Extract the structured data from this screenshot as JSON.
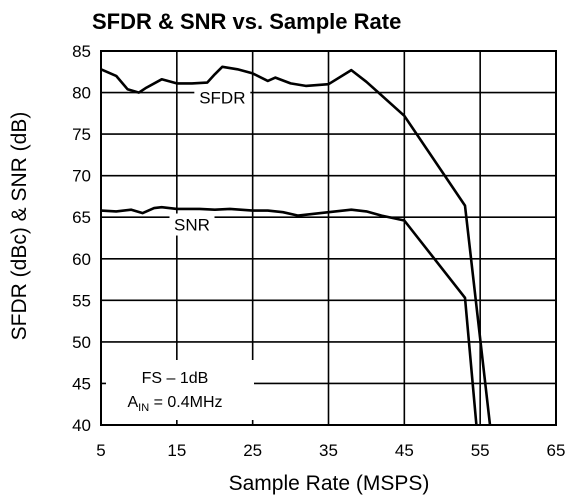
{
  "chart_data": {
    "type": "line",
    "title": "SFDR & SNR vs. Sample Rate",
    "xlabel": "Sample Rate (MSPS)",
    "ylabel": "SFDR (dBc) & SNR (dB)",
    "xlim": [
      5,
      65
    ],
    "ylim": [
      40,
      85
    ],
    "xticks": [
      5,
      15,
      25,
      35,
      45,
      55,
      65
    ],
    "yticks": [
      40,
      45,
      50,
      55,
      60,
      65,
      70,
      75,
      80,
      85
    ],
    "grid": true,
    "series": [
      {
        "name": "SFDR",
        "x": [
          5,
          7,
          8.5,
          10,
          11,
          13,
          15,
          17,
          19,
          20,
          21,
          23,
          25,
          27,
          28,
          30,
          32,
          35,
          38,
          40,
          45,
          53,
          56.3
        ],
        "y": [
          82.8,
          82.0,
          80.4,
          80.0,
          80.6,
          81.6,
          81.1,
          81.1,
          81.2,
          82.2,
          83.1,
          82.8,
          82.3,
          81.4,
          81.8,
          81.1,
          80.8,
          81.0,
          82.7,
          81.3,
          77.2,
          66.4,
          40
        ]
      },
      {
        "name": "SNR",
        "x": [
          5,
          7,
          9,
          10.5,
          12,
          13,
          15,
          18,
          20,
          22,
          25,
          27,
          29,
          31,
          35,
          38,
          40,
          42,
          44,
          45,
          53,
          54.5
        ],
        "y": [
          65.8,
          65.7,
          65.9,
          65.5,
          66.1,
          66.2,
          66.0,
          66.0,
          65.9,
          66.0,
          65.8,
          65.8,
          65.6,
          65.2,
          65.6,
          65.9,
          65.7,
          65.2,
          64.8,
          64.6,
          55.3,
          40
        ]
      }
    ],
    "annotation": {
      "line1": "FS – 1dB",
      "line2_main": "A",
      "line2_sub": "IN",
      "line2_rest": " = 0.4MHz"
    }
  }
}
